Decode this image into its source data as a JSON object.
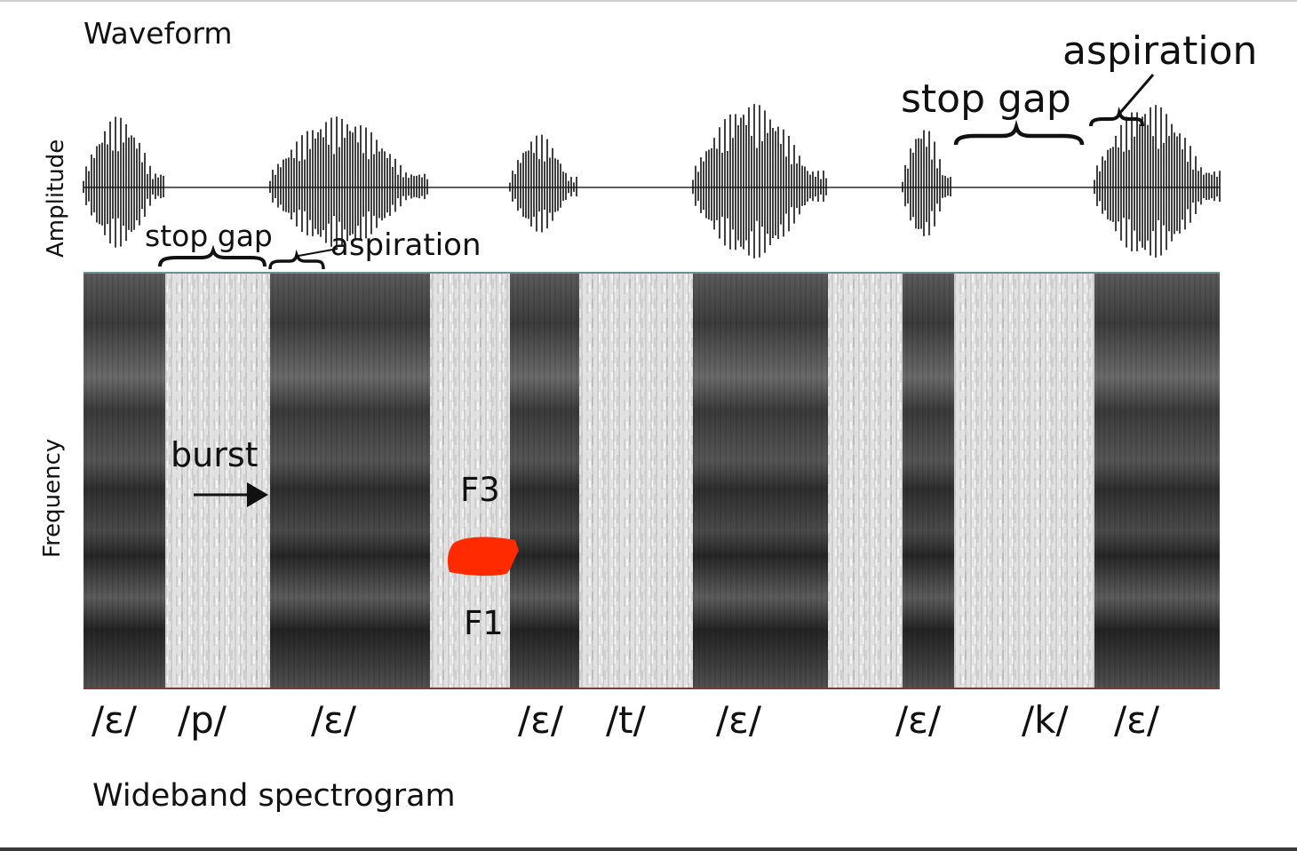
{
  "titles": {
    "waveform": "Waveform",
    "spectrogram": "Wideband spectrogram"
  },
  "axes": {
    "amplitude": "Amplitude",
    "frequency": "Frequency"
  },
  "annotations": {
    "stop_gap_1": "stop gap",
    "aspiration_1": "aspiration",
    "stop_gap_2": "stop gap",
    "aspiration_2": "aspiration",
    "burst": "burst",
    "f3": "F3",
    "f1": "F1"
  },
  "segments": [
    "/ɛ/",
    "/p/",
    "/ɛ/",
    "/ɛ/",
    "/t/",
    "/ɛ/",
    "/ɛ/",
    "/k/",
    "/ɛ/"
  ],
  "colors": {
    "redaction": "#ff2a00",
    "waveform": "#111111",
    "spectrogram_light": "#e4e4e4",
    "spectrogram_dark": "#3a3a3a"
  }
}
